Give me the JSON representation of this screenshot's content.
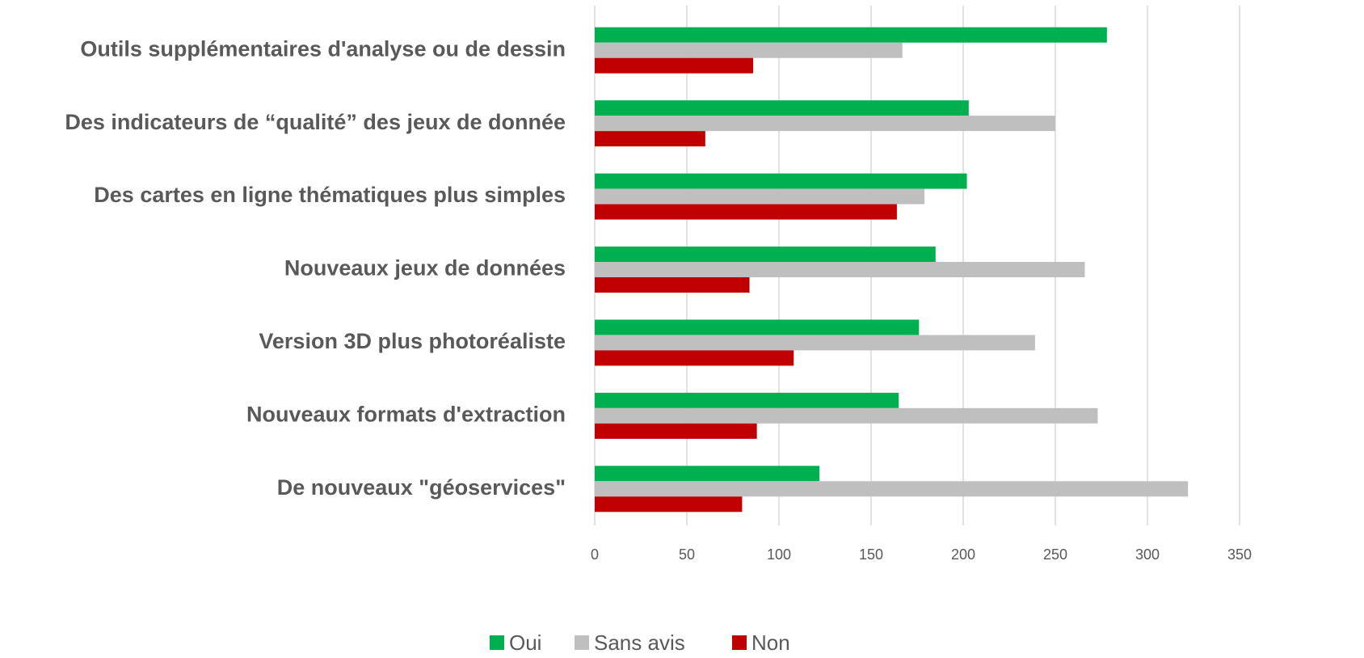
{
  "chart_data": {
    "type": "hbar",
    "categories": [
      "Outils supplémentaires d'analyse ou de dessin",
      "Des indicateurs de “qualité” des jeux de donnée",
      "Des cartes en ligne thématiques plus simples",
      "Nouveaux jeux de données",
      "Version 3D plus photoréaliste",
      "Nouveaux formats d'extraction",
      "De nouveaux \"géoservices\""
    ],
    "series": [
      {
        "name": "Oui",
        "color": "#00b050",
        "values": [
          278,
          203,
          202,
          185,
          176,
          165,
          122
        ]
      },
      {
        "name": "Sans avis",
        "color": "#bfbfbf",
        "values": [
          167,
          250,
          179,
          266,
          239,
          273,
          322
        ]
      },
      {
        "name": "Non",
        "color": "#c00000",
        "values": [
          86,
          60,
          164,
          84,
          108,
          88,
          80
        ]
      }
    ],
    "xlim": [
      0,
      350
    ],
    "xticks": [
      0,
      50,
      100,
      150,
      200,
      250,
      300,
      350
    ],
    "grid": true
  }
}
